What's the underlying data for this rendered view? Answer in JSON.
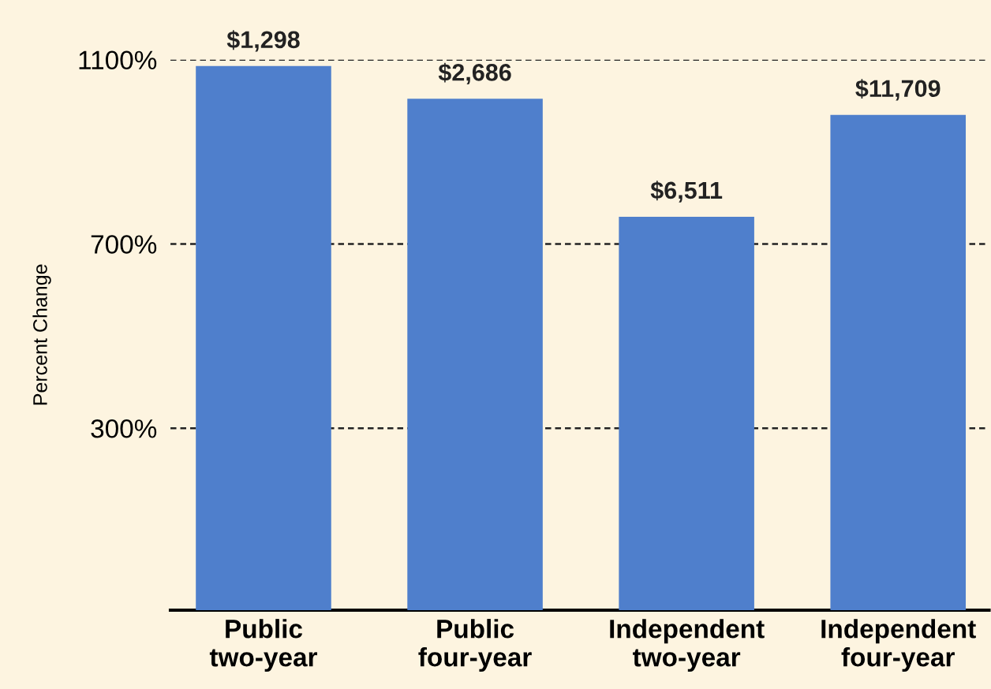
{
  "chart_data": {
    "type": "bar",
    "ylabel": "Percent Change",
    "categories": [
      "Public\ntwo-year",
      "Public\nfour-year",
      "Independent\ntwo-year",
      "Independent\nfour-year"
    ],
    "base": [
      -95,
      -95,
      -95,
      -95
    ],
    "values": [
      1181,
      1110,
      854,
      1075
    ],
    "annotations": [
      {
        "text": "$1,298",
        "x": "Public\ntwo-year",
        "y": 1086
      },
      {
        "text": "$2,686",
        "x": "Public\nfour-year",
        "y": 1015
      },
      {
        "text": "$6,511",
        "x": "Independent\ntwo-year",
        "y": 759
      },
      {
        "text": "$11,709",
        "x": "Independent\nfour-year",
        "y": 980
      }
    ],
    "color": "#4f7fcc",
    "ylim": [
      -95,
      1100
    ],
    "yticks": [
      {
        "value": 300,
        "label": "300%"
      },
      {
        "value": 700,
        "label": "700%"
      },
      {
        "value": 1100,
        "label": "1100%"
      }
    ],
    "grid": "y"
  }
}
